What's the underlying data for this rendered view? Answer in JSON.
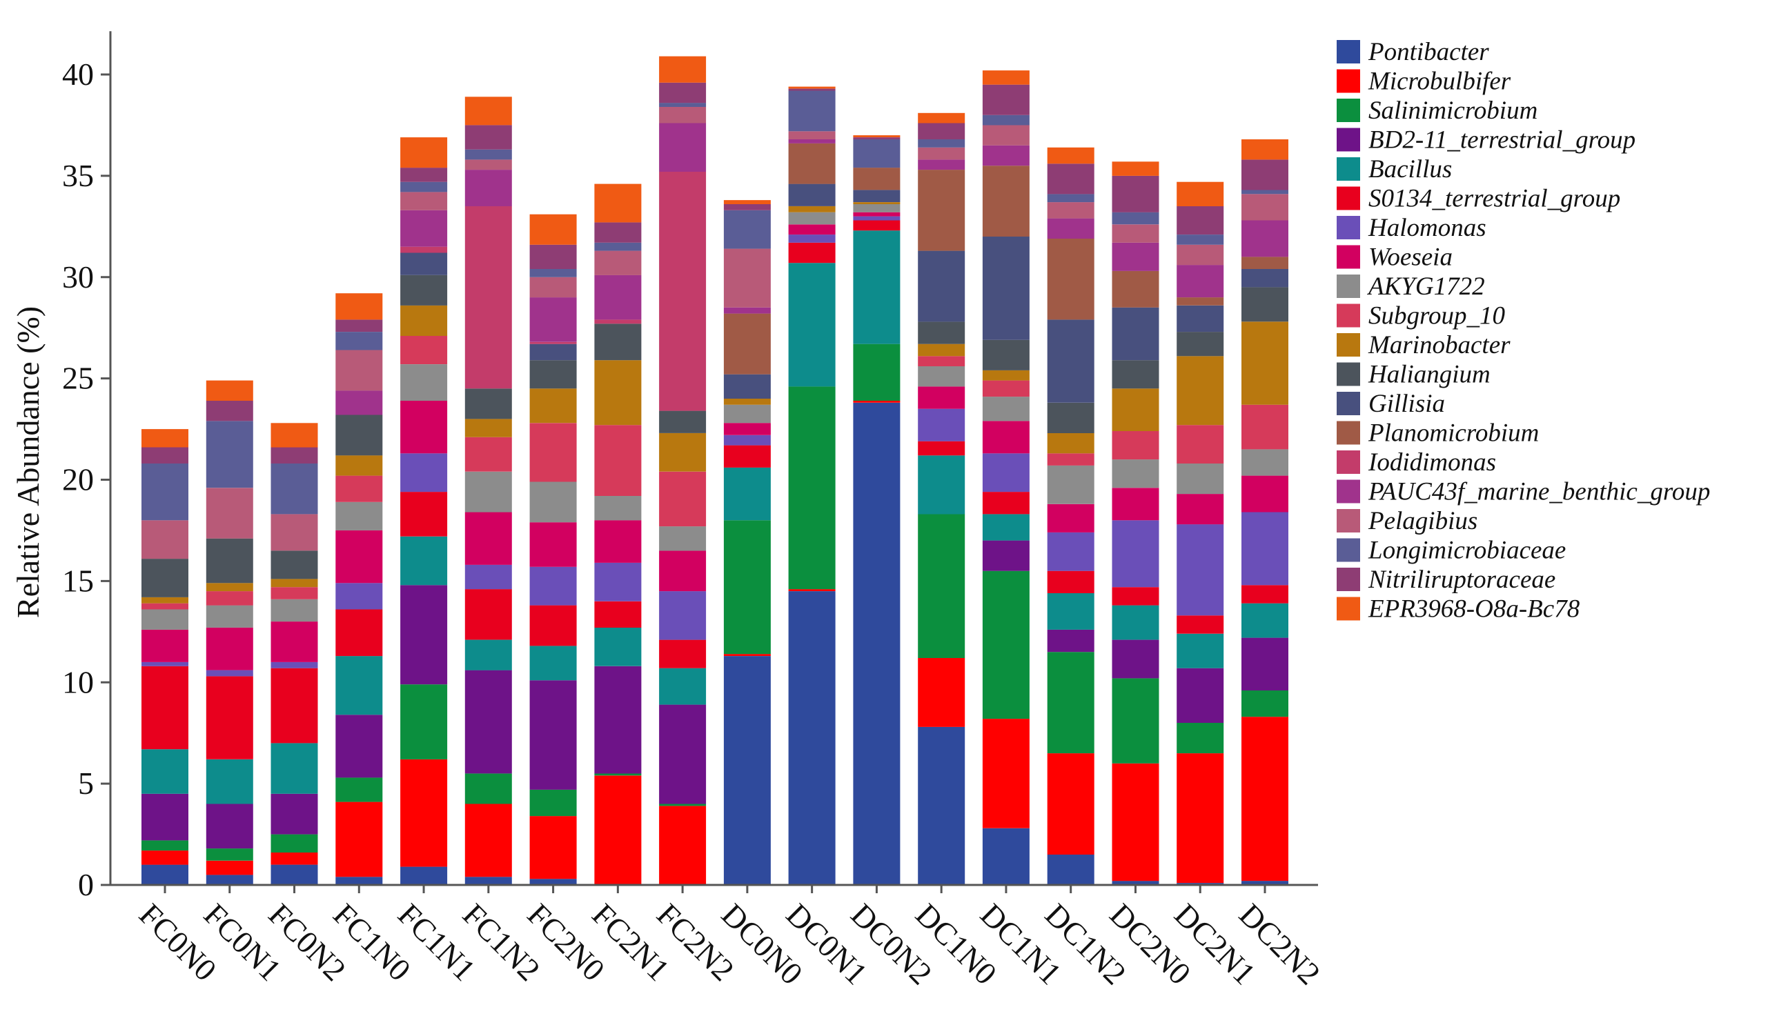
{
  "chart_data": {
    "type": "bar",
    "stacked": true,
    "ylabel": "Relative Abundance (%)",
    "xlabel": "",
    "ylim": [
      0,
      42
    ],
    "yticks": [
      0,
      5,
      10,
      15,
      20,
      25,
      30,
      35,
      40
    ],
    "legend_position": "right",
    "categories": [
      "FC0N0",
      "FC0N1",
      "FC0N2",
      "FC1N0",
      "FC1N1",
      "FC1N2",
      "FC2N0",
      "FC2N1",
      "FC2N2",
      "DC0N0",
      "DC0N1",
      "DC0N2",
      "DC1N0",
      "DC1N1",
      "DC1N2",
      "DC2N0",
      "DC2N1",
      "DC2N2"
    ],
    "series": [
      {
        "name": "Pontibacter",
        "color": "#2f4a9c",
        "values": [
          1.0,
          0.5,
          1.0,
          0.4,
          0.9,
          0.4,
          0.3,
          0.0,
          0.0,
          11.3,
          14.5,
          23.8,
          7.8,
          2.8,
          1.5,
          0.2,
          0.1,
          0.2
        ]
      },
      {
        "name": "Microbulbifer",
        "color": "#ff0000",
        "values": [
          0.7,
          0.7,
          0.6,
          3.7,
          5.3,
          3.6,
          3.1,
          5.4,
          3.9,
          0.1,
          0.1,
          0.1,
          3.4,
          5.4,
          5.0,
          5.8,
          6.4,
          8.1
        ]
      },
      {
        "name": "Salinimicrobium",
        "color": "#0b8f3e",
        "values": [
          0.5,
          0.6,
          0.9,
          1.2,
          3.7,
          1.5,
          1.3,
          0.1,
          0.1,
          6.6,
          10.0,
          2.8,
          7.1,
          7.3,
          5.0,
          4.2,
          1.5,
          1.3
        ]
      },
      {
        "name": "BD2-11_terrestrial_group",
        "color": "#6e1388",
        "values": [
          2.3,
          2.2,
          2.0,
          3.1,
          4.9,
          5.1,
          5.4,
          5.3,
          4.9,
          0.0,
          0.0,
          0.0,
          0.0,
          1.5,
          1.1,
          1.9,
          2.7,
          2.6
        ]
      },
      {
        "name": "Bacillus",
        "color": "#0d8c8c",
        "values": [
          2.2,
          2.2,
          2.5,
          2.9,
          2.4,
          1.5,
          1.7,
          1.9,
          1.8,
          2.6,
          6.1,
          5.6,
          2.9,
          1.3,
          1.8,
          1.7,
          1.7,
          1.7
        ]
      },
      {
        "name": "S0134_terrestrial_group",
        "color": "#e8001e",
        "values": [
          4.1,
          4.1,
          3.7,
          2.3,
          2.2,
          2.5,
          2.0,
          1.3,
          1.4,
          1.1,
          1.0,
          0.5,
          0.7,
          1.1,
          1.1,
          0.9,
          0.9,
          0.9
        ]
      },
      {
        "name": "Halomonas",
        "color": "#6a4fb8",
        "values": [
          0.2,
          0.3,
          0.3,
          1.3,
          1.9,
          1.2,
          1.9,
          1.9,
          2.4,
          0.5,
          0.4,
          0.2,
          1.6,
          1.9,
          1.9,
          3.3,
          4.5,
          3.6
        ]
      },
      {
        "name": "Woeseia",
        "color": "#d20060",
        "values": [
          1.6,
          2.1,
          2.0,
          2.6,
          2.6,
          2.6,
          2.2,
          2.1,
          2.0,
          0.6,
          0.5,
          0.2,
          1.1,
          1.6,
          1.4,
          1.6,
          1.5,
          1.8
        ]
      },
      {
        "name": "AKYG1722",
        "color": "#8c8c8c",
        "values": [
          1.0,
          1.1,
          1.1,
          1.4,
          1.8,
          2.0,
          2.0,
          1.2,
          1.2,
          0.9,
          0.6,
          0.4,
          1.0,
          1.2,
          1.9,
          1.4,
          1.5,
          1.3
        ]
      },
      {
        "name": "Subgroup_10",
        "color": "#d63a5a",
        "values": [
          0.3,
          0.7,
          0.6,
          1.3,
          1.4,
          1.7,
          2.9,
          3.5,
          2.7,
          0.0,
          0.0,
          0.0,
          0.5,
          0.8,
          0.6,
          1.4,
          1.9,
          2.2
        ]
      },
      {
        "name": "Marinobacter",
        "color": "#b8780f",
        "values": [
          0.3,
          0.4,
          0.4,
          1.0,
          1.5,
          0.9,
          1.7,
          3.2,
          1.9,
          0.3,
          0.3,
          0.1,
          0.6,
          0.5,
          1.0,
          2.1,
          3.4,
          4.1
        ]
      },
      {
        "name": "Haliangium",
        "color": "#4c545c",
        "values": [
          1.9,
          2.2,
          1.4,
          2.0,
          1.5,
          1.5,
          1.4,
          1.8,
          1.1,
          0.0,
          0.0,
          0.0,
          1.1,
          1.5,
          1.5,
          1.4,
          1.2,
          1.7
        ]
      },
      {
        "name": "Gillisia",
        "color": "#48507e",
        "values": [
          0.0,
          0.0,
          0.0,
          0.0,
          1.1,
          0.0,
          0.8,
          0.0,
          0.0,
          1.2,
          1.1,
          0.6,
          3.5,
          5.1,
          4.1,
          2.6,
          1.3,
          0.9
        ]
      },
      {
        "name": "Planomicrobium",
        "color": "#a05a46",
        "values": [
          0.0,
          0.0,
          0.0,
          0.0,
          0.0,
          0.0,
          0.0,
          0.0,
          0.0,
          3.0,
          2.0,
          1.1,
          4.0,
          3.5,
          4.0,
          1.8,
          0.4,
          0.6
        ]
      },
      {
        "name": "Iodidimonas",
        "color": "#c33c6a",
        "values": [
          0.0,
          0.0,
          0.0,
          0.0,
          0.3,
          9.0,
          0.1,
          0.2,
          11.8,
          0.0,
          0.0,
          0.0,
          0.0,
          0.0,
          0.0,
          0.0,
          0.0,
          0.0
        ]
      },
      {
        "name": "PAUC43f_marine_benthic_group",
        "color": "#a0338c",
        "values": [
          0.0,
          0.0,
          0.0,
          1.2,
          1.8,
          1.8,
          2.2,
          2.2,
          2.4,
          0.3,
          0.2,
          0.0,
          0.5,
          1.0,
          1.0,
          1.4,
          1.6,
          1.8
        ]
      },
      {
        "name": "Pelagibius",
        "color": "#b85a78",
        "values": [
          1.9,
          2.5,
          1.8,
          2.0,
          0.9,
          0.5,
          1.0,
          1.2,
          0.8,
          2.9,
          0.4,
          0.0,
          0.6,
          1.0,
          0.8,
          0.9,
          1.0,
          1.3
        ]
      },
      {
        "name": "Longimicrobiaceae",
        "color": "#5a5d96",
        "values": [
          2.8,
          3.3,
          2.5,
          0.9,
          0.5,
          0.5,
          0.4,
          0.4,
          0.2,
          1.9,
          2.0,
          1.4,
          0.4,
          0.5,
          0.4,
          0.6,
          0.5,
          0.2
        ]
      },
      {
        "name": "Nitriliruptoraceae",
        "color": "#8e3d74",
        "values": [
          0.8,
          1.0,
          0.8,
          0.6,
          0.7,
          1.2,
          1.2,
          1.0,
          1.0,
          0.3,
          0.1,
          0.1,
          0.8,
          1.5,
          1.5,
          1.8,
          1.4,
          1.5
        ]
      },
      {
        "name": "EPR3968-O8a-Bc78",
        "color": "#f05a14",
        "values": [
          0.9,
          1.0,
          1.2,
          1.3,
          1.5,
          1.4,
          1.5,
          1.9,
          1.3,
          0.2,
          0.1,
          0.1,
          0.5,
          0.7,
          0.8,
          0.7,
          1.2,
          1.0
        ]
      }
    ]
  }
}
